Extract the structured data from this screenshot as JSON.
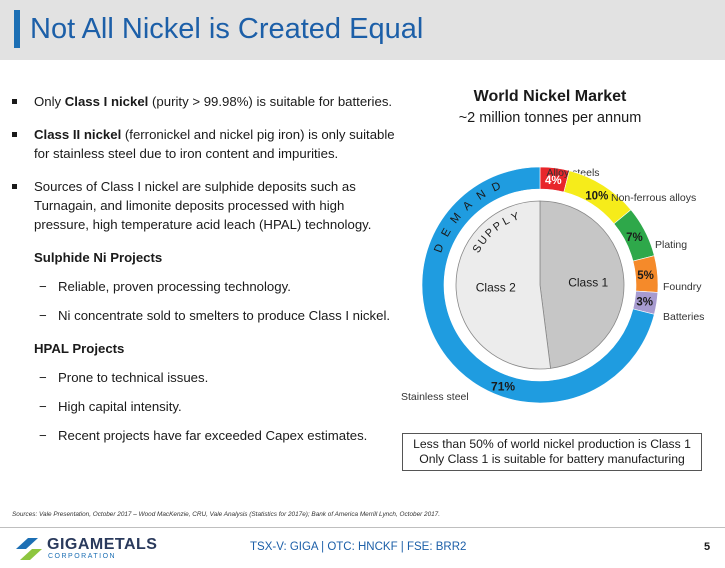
{
  "header": {
    "title": "Not All Nickel is Created Equal"
  },
  "bullets": [
    {
      "pre": "Only ",
      "bold": "Class I nickel",
      "post": " (purity > 99.98%) is suitable for batteries."
    },
    {
      "pre": "",
      "bold": "Class II nickel",
      "post": " (ferronickel and nickel pig iron) is only suitable for stainless steel due to iron content and impurities."
    },
    {
      "pre": "Sources of Class I nickel are sulphide deposits such as Turnagain, and limonite deposits processed with high pressure, high temperature acid leach (HPAL) technology.",
      "bold": "",
      "post": ""
    }
  ],
  "sulphide": {
    "heading": "Sulphide Ni Projects",
    "items": [
      "Reliable, proven processing technology.",
      "Ni concentrate sold to smelters to produce Class I nickel."
    ]
  },
  "hpal": {
    "heading": "HPAL Projects",
    "items": [
      "Prone to technical issues.",
      "High capital intensity.",
      "Recent projects have far exceeded Capex estimates."
    ]
  },
  "chart_data": {
    "type": "pie",
    "title": "World Nickel Market",
    "subtitle": "~2 million tonnes per annum",
    "outer_ring_label": "DEMAND",
    "inner_pie_label": "SUPPLY",
    "demand": [
      {
        "name": "Alloy steels",
        "value": 4,
        "label": "4%",
        "color": "#e8262b"
      },
      {
        "name": "Non-ferrous alloys",
        "value": 10,
        "label": "10%",
        "color": "#f6ec1a"
      },
      {
        "name": "Plating",
        "value": 7,
        "label": "7%",
        "color": "#2ea84a"
      },
      {
        "name": "Foundry",
        "value": 5,
        "label": "5%",
        "color": "#f58a2a"
      },
      {
        "name": "Batteries",
        "value": 3,
        "label": "3%",
        "color": "#a79bd0"
      },
      {
        "name": "Stainless steel",
        "value": 71,
        "label": "71%",
        "color": "#1f9ce0"
      }
    ],
    "supply": [
      {
        "name": "Class 1",
        "value": 48,
        "color": "#c6c6c6"
      },
      {
        "name": "Class 2",
        "value": 52,
        "color": "#ececec"
      }
    ]
  },
  "callout": {
    "line1": "Less than 50% of world nickel production is Class 1",
    "line2": "Only Class 1 is suitable for battery manufacturing"
  },
  "sources": "Sources: Vale Presentation, October 2017 – Wood MacKenzie, CRU, Vale Analysis (Statistics for 2017e); Bank of America Merrill Lynch, October 2017.",
  "footer": {
    "logo_main": "GIGAMETALS",
    "logo_sub": "CORPORATION",
    "ticker": "TSX-V: GIGA | OTC: HNCKF | FSE: BRR2",
    "page": "5"
  }
}
